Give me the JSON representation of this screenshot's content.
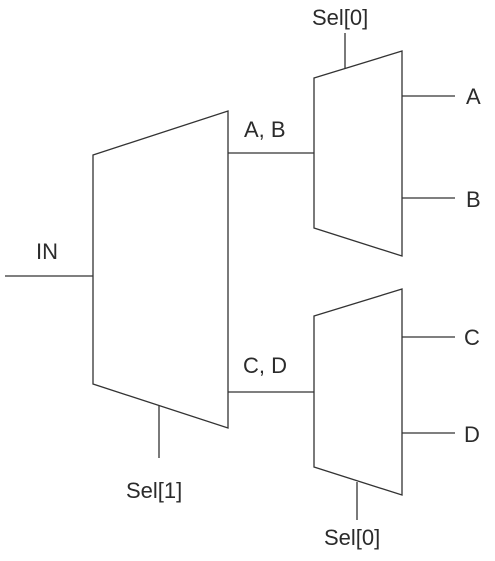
{
  "labels": {
    "input": "IN",
    "sel_top": "Sel[0]",
    "sel_bottom": "Sel[1]",
    "sel_lower": "Sel[0]",
    "bus_ab": "A, B",
    "bus_cd": "C, D",
    "out_a": "A",
    "out_b": "B",
    "out_c": "C",
    "out_d": "D"
  },
  "colors": {
    "stroke": "#333333",
    "text": "#2b2b2b",
    "background": "#ffffff"
  }
}
